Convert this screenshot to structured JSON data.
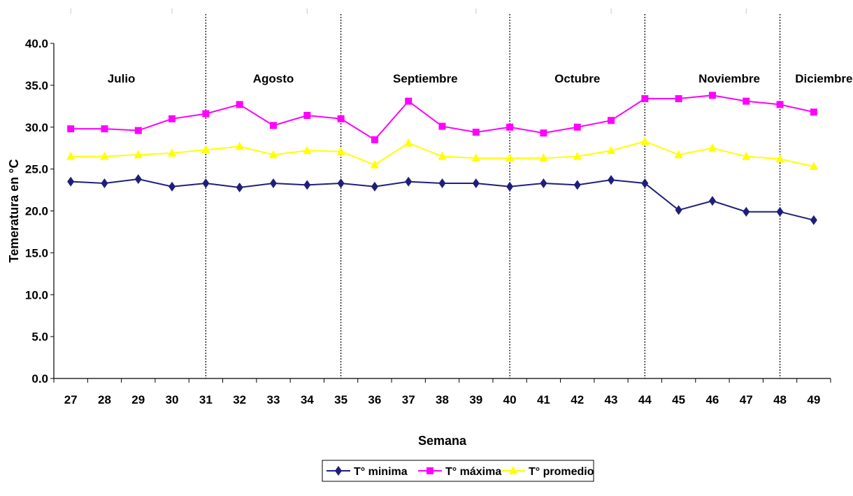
{
  "chart_data": {
    "type": "line",
    "title": "",
    "xlabel": "Semana",
    "ylabel": "Temeratura en °C",
    "x": [
      27,
      28,
      29,
      30,
      31,
      32,
      33,
      34,
      35,
      36,
      37,
      38,
      39,
      40,
      41,
      42,
      43,
      44,
      45,
      46,
      47,
      48,
      49
    ],
    "ylim": [
      0,
      40
    ],
    "yticks": [
      "0.0",
      "5.0",
      "10.0",
      "15.0",
      "20.0",
      "25.0",
      "30.0",
      "35.0",
      "40.0"
    ],
    "grid": false,
    "legend": "bottom",
    "months": [
      {
        "label": "Julio",
        "center_week": 28.5
      },
      {
        "label": "Agosto",
        "center_week": 33
      },
      {
        "label": "Septiembre",
        "center_week": 37.5
      },
      {
        "label": "Octubre",
        "center_week": 42
      },
      {
        "label": "Noviembre",
        "center_week": 46.5
      },
      {
        "label": "Diciembre",
        "center_week": 49.3
      }
    ],
    "month_dividers": [
      31,
      35,
      40,
      44,
      48
    ],
    "series": [
      {
        "name": "T° minima",
        "color": "#1f1f7a",
        "marker": "diamond",
        "values": [
          23.5,
          23.3,
          23.8,
          22.9,
          23.3,
          22.8,
          23.3,
          23.1,
          23.3,
          22.9,
          23.5,
          23.3,
          23.3,
          22.9,
          23.3,
          23.1,
          23.7,
          23.3,
          20.1,
          21.2,
          19.9,
          19.9,
          18.9
        ]
      },
      {
        "name": "T° máxima",
        "color": "#ff00ff",
        "marker": "square",
        "values": [
          29.8,
          29.8,
          29.6,
          31.0,
          31.6,
          32.7,
          30.2,
          31.4,
          31.0,
          28.5,
          33.1,
          30.1,
          29.4,
          30.0,
          29.3,
          30.0,
          30.8,
          33.4,
          33.4,
          33.8,
          33.1,
          32.7,
          31.8
        ]
      },
      {
        "name": "T° promedio",
        "color": "#ffff00",
        "marker": "triangle",
        "values": [
          26.5,
          26.5,
          26.7,
          26.9,
          27.3,
          27.7,
          26.7,
          27.2,
          27.1,
          25.5,
          28.1,
          26.5,
          26.3,
          26.3,
          26.3,
          26.5,
          27.2,
          28.3,
          26.7,
          27.5,
          26.5,
          26.2,
          25.3
        ]
      }
    ]
  }
}
